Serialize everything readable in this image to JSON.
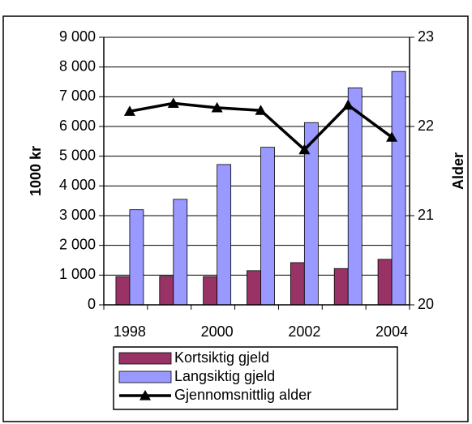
{
  "chart_data": {
    "type": "bar",
    "categories": [
      "1998",
      null,
      "2000",
      null,
      "2002",
      null,
      "2004"
    ],
    "series": [
      {
        "name": "Kortsiktig gjeld",
        "type": "bar",
        "color": "#993366",
        "values": [
          950,
          960,
          950,
          1150,
          1420,
          1220,
          1530
        ]
      },
      {
        "name": "Langsiktig gjeld",
        "type": "bar",
        "color": "#9999ff",
        "values": [
          3200,
          3550,
          4720,
          5300,
          6130,
          7300,
          7850
        ]
      },
      {
        "name": "Gjennomsnittlig alder",
        "type": "line",
        "axis": "y2",
        "color": "#000000",
        "values": [
          22.17,
          22.26,
          22.21,
          22.18,
          21.74,
          22.24,
          21.88
        ]
      }
    ],
    "ylabel": "1000 kr",
    "y2label": "Alder",
    "ylim": [
      0,
      9000
    ],
    "yticks": [
      0,
      {
        "value": 1000,
        "label": "1 000"
      },
      {
        "value": 2000,
        "label": "2 000"
      },
      {
        "value": 3000,
        "label": "3 000"
      },
      {
        "value": 4000,
        "label": "4 000"
      },
      {
        "value": 5000,
        "label": "5 000"
      },
      {
        "value": 6000,
        "label": "6 000"
      },
      {
        "value": 7000,
        "label": "7 000"
      },
      {
        "value": 8000,
        "label": "8 000"
      },
      {
        "value": 9000,
        "label": "9 000"
      }
    ],
    "y2lim": [
      20,
      23
    ],
    "y2ticks": [
      20,
      21,
      22,
      23
    ],
    "grid": true,
    "legend": "bottom"
  }
}
